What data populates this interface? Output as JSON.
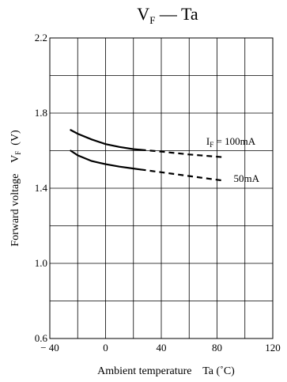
{
  "chart_data": {
    "type": "line",
    "title": {
      "main": "V",
      "sub": "F",
      "rest": " — Ta"
    },
    "xlabel": "Ambient temperature    Ta (˚C)",
    "ylabel": {
      "text": "Forward voltage    V",
      "sub": "F",
      "unit": "  (V)"
    },
    "xlim": [
      -40,
      120
    ],
    "ylim": [
      0.6,
      2.2
    ],
    "x_gridlines": [
      -40,
      -20,
      0,
      20,
      40,
      60,
      80,
      100,
      120
    ],
    "y_gridlines": [
      0.6,
      0.8,
      1.0,
      1.2,
      1.4,
      1.6,
      1.8,
      2.0,
      2.2
    ],
    "x_ticks": [
      {
        "value": -40,
        "label": "− 40"
      },
      {
        "value": 0,
        "label": "0"
      },
      {
        "value": 40,
        "label": "40"
      },
      {
        "value": 80,
        "label": "80"
      },
      {
        "value": 120,
        "label": "120"
      }
    ],
    "y_ticks": [
      {
        "value": 0.6,
        "label": "0.6"
      },
      {
        "value": 1.0,
        "label": "1.0"
      },
      {
        "value": 1.4,
        "label": "1.4"
      },
      {
        "value": 1.8,
        "label": "1.8"
      },
      {
        "value": 2.2,
        "label": "2.2"
      }
    ],
    "grid": true,
    "series": [
      {
        "name": "I_F = 100mA",
        "label_main": "I",
        "label_sub": "F",
        "label_rest": " = 100mA",
        "solid": {
          "x": [
            -25,
            -20,
            -10,
            0,
            10,
            20,
            25
          ],
          "y": [
            1.71,
            1.69,
            1.66,
            1.635,
            1.62,
            1.608,
            1.605
          ]
        },
        "dashed": {
          "x": [
            25,
            40,
            60,
            85
          ],
          "y": [
            1.605,
            1.595,
            1.58,
            1.565
          ]
        }
      },
      {
        "name": "50mA",
        "label_main": "50mA",
        "solid": {
          "x": [
            -25,
            -20,
            -10,
            0,
            10,
            20,
            25
          ],
          "y": [
            1.6,
            1.575,
            1.545,
            1.528,
            1.515,
            1.505,
            1.5
          ]
        },
        "dashed": {
          "x": [
            25,
            40,
            60,
            85
          ],
          "y": [
            1.5,
            1.485,
            1.465,
            1.44
          ]
        }
      }
    ]
  }
}
